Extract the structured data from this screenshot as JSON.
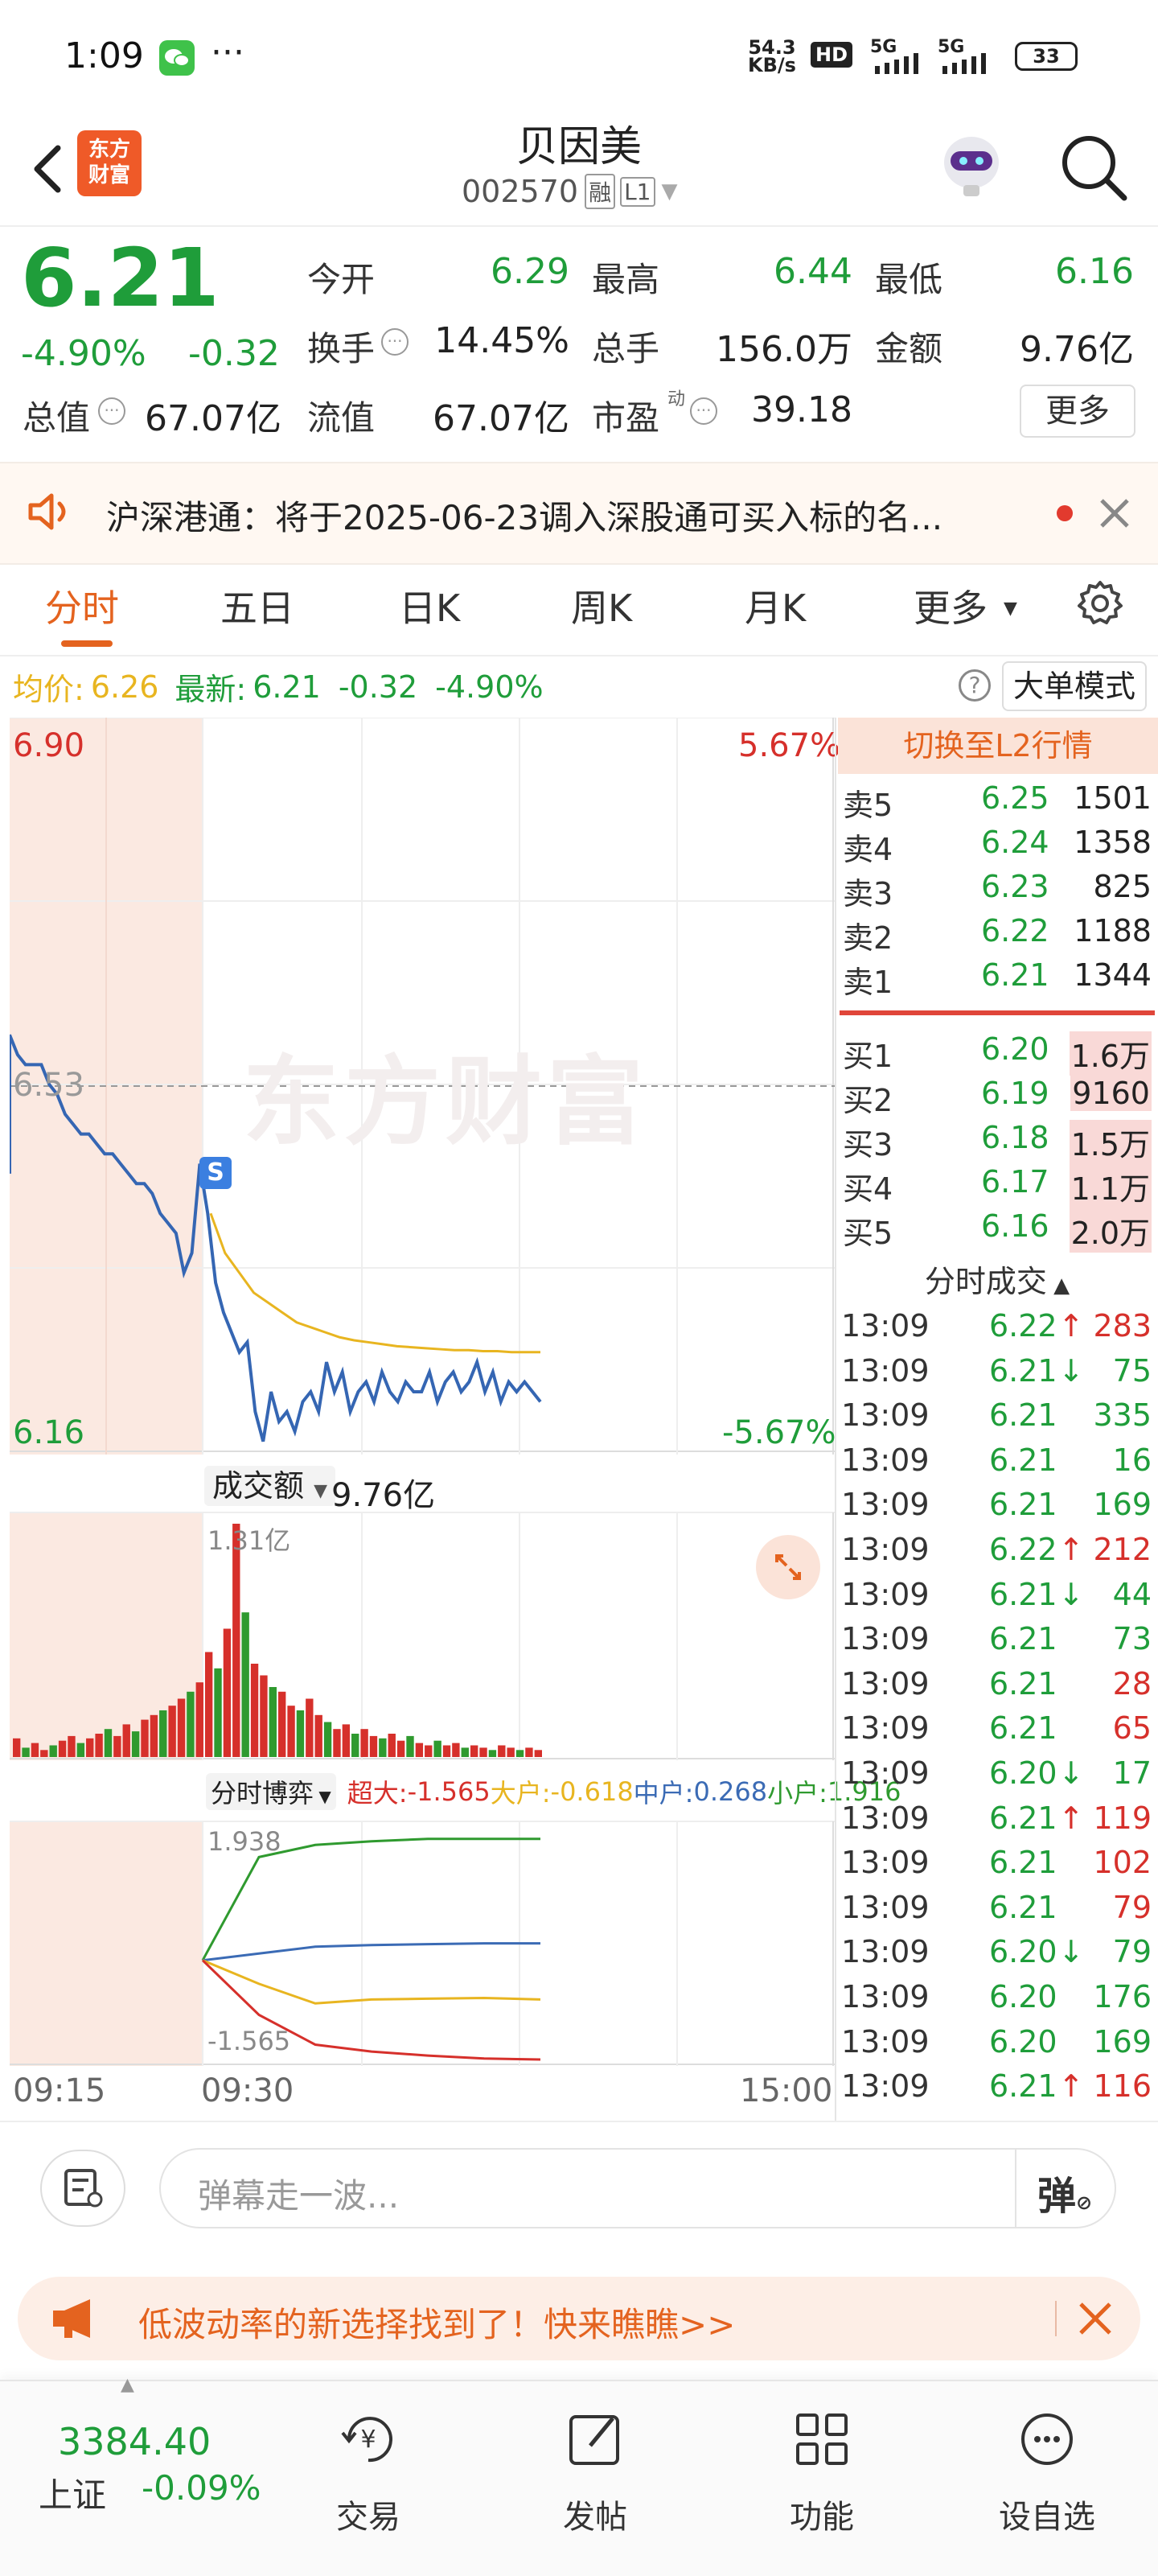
{
  "status_bar": {
    "time": "1:09",
    "dots": "···",
    "net_speed_top": "54.3",
    "net_speed_unit": "KB/s",
    "hd_label": "HD",
    "sig1": "5G",
    "sig2": "5G",
    "battery": "33"
  },
  "header": {
    "logo_line1": "东方",
    "logo_line2": "财富",
    "stock_name": "贝因美",
    "stock_code": "002570",
    "tag_margin": "融",
    "tag_level": "L1"
  },
  "quote": {
    "price": "6.21",
    "change_pct": "-4.90%",
    "change": "-0.32",
    "fields": [
      {
        "label": "今开",
        "value": "6.29"
      },
      {
        "label": "最高",
        "value": "6.44"
      },
      {
        "label": "最低",
        "value": "6.16"
      },
      {
        "label": "换手",
        "value": "14.45%"
      },
      {
        "label": "总手",
        "value": "156.0万"
      },
      {
        "label": "金额",
        "value": "9.76亿"
      },
      {
        "label": "总值",
        "value": "67.07亿"
      },
      {
        "label": "流值",
        "value": "67.07亿"
      },
      {
        "label": "市盈",
        "value": "39.18"
      }
    ],
    "pe_superscript": "动",
    "more_button": "更多"
  },
  "notice": {
    "text": "沪深港通：将于2025-06-23调入深股通可买入标的名..."
  },
  "tabs": [
    "分时",
    "五日",
    "日K",
    "周K",
    "月K",
    "更多"
  ],
  "avg_bar": {
    "avg_label": "均价:",
    "avg_value": "6.26",
    "latest_label": "最新:",
    "latest_value": "6.21",
    "change": "-0.32",
    "change_pct": "-4.90%",
    "big_order_mode": "大单模式"
  },
  "intraday_chart": {
    "y_top": "6.90",
    "y_mid": "6.53",
    "y_bottom": "6.16",
    "pct_top": "5.67%",
    "pct_bottom": "-5.67%",
    "watermark": "东方财富",
    "signal_marker": "S",
    "price_series": [
      6.58,
      6.56,
      6.55,
      6.55,
      6.55,
      6.53,
      6.52,
      6.5,
      6.49,
      6.48,
      6.48,
      6.47,
      6.46,
      6.46,
      6.45,
      6.44,
      6.43,
      6.43,
      6.42,
      6.4,
      6.39,
      6.38,
      6.34,
      6.36,
      6.45,
      6.4,
      6.33,
      6.3,
      6.28,
      6.26,
      6.27,
      6.2,
      6.17,
      6.22,
      6.19,
      6.2,
      6.18,
      6.21,
      6.22,
      6.2,
      6.25,
      6.22,
      6.24,
      6.2,
      6.22,
      6.23,
      6.21,
      6.24,
      6.22,
      6.21,
      6.23,
      6.22,
      6.22,
      6.24,
      6.21,
      6.23,
      6.24,
      6.22,
      6.23,
      6.25,
      6.22,
      6.24,
      6.21,
      6.23,
      6.22,
      6.23,
      6.22,
      6.21
    ],
    "avg_series": [
      6.4,
      6.36,
      6.34,
      6.32,
      6.31,
      6.3,
      6.29,
      6.285,
      6.28,
      6.275,
      6.272,
      6.27,
      6.268,
      6.266,
      6.265,
      6.264,
      6.263,
      6.262,
      6.262,
      6.261,
      6.261,
      6.26,
      6.26,
      6.26
    ]
  },
  "volume_chart": {
    "label": "成交额",
    "total": "9.76亿",
    "max_label": "1.31亿",
    "bars": [
      0.08,
      0.04,
      0.06,
      0.03,
      0.05,
      0.07,
      0.09,
      0.06,
      0.08,
      0.1,
      0.12,
      0.09,
      0.14,
      0.11,
      0.16,
      0.18,
      0.2,
      0.22,
      0.25,
      0.28,
      0.32,
      0.45,
      0.38,
      0.55,
      1.0,
      0.62,
      0.4,
      0.35,
      0.3,
      0.28,
      0.22,
      0.2,
      0.25,
      0.18,
      0.15,
      0.12,
      0.14,
      0.1,
      0.12,
      0.09,
      0.08,
      0.1,
      0.07,
      0.09,
      0.06,
      0.05,
      0.07,
      0.05,
      0.06,
      0.04,
      0.05,
      0.04,
      0.03,
      0.05,
      0.04,
      0.03,
      0.04,
      0.03
    ]
  },
  "capital_game": {
    "label": "分时博弈",
    "super_label": "超大:",
    "super_value": "-1.565",
    "large_label": "大户:",
    "large_value": "-0.618",
    "mid_label": "中户:",
    "mid_value": "0.268",
    "small_label": "小户:",
    "small_value": "1.916",
    "max_label": "1.938",
    "min_label": "-1.565",
    "series_colors": {
      "super": "#d6302b",
      "large": "#e8b520",
      "mid": "#3b6bb5",
      "small": "#2f9a2f"
    }
  },
  "time_axis": [
    "09:15",
    "09:30",
    "15:00"
  ],
  "order_book": {
    "switch_label": "切换至L2行情",
    "asks": [
      {
        "label": "卖5",
        "price": "6.25",
        "vol": "1501"
      },
      {
        "label": "卖4",
        "price": "6.24",
        "vol": "1358"
      },
      {
        "label": "卖3",
        "price": "6.23",
        "vol": "825"
      },
      {
        "label": "卖2",
        "price": "6.22",
        "vol": "1188"
      },
      {
        "label": "卖1",
        "price": "6.21",
        "vol": "1344"
      }
    ],
    "bids": [
      {
        "label": "买1",
        "price": "6.20",
        "vol": "1.6万"
      },
      {
        "label": "买2",
        "price": "6.19",
        "vol": "9160"
      },
      {
        "label": "买3",
        "price": "6.18",
        "vol": "1.5万"
      },
      {
        "label": "买4",
        "price": "6.17",
        "vol": "1.1万"
      },
      {
        "label": "买5",
        "price": "6.16",
        "vol": "2.0万"
      }
    ],
    "ticks_label": "分时成交"
  },
  "ticks": [
    {
      "time": "13:09",
      "price": "6.22",
      "dir": "↑",
      "vol": "283",
      "color": "red"
    },
    {
      "time": "13:09",
      "price": "6.21",
      "dir": "↓",
      "vol": "75",
      "color": "green"
    },
    {
      "time": "13:09",
      "price": "6.21",
      "dir": "",
      "vol": "335",
      "color": "green"
    },
    {
      "time": "13:09",
      "price": "6.21",
      "dir": "",
      "vol": "16",
      "color": "green"
    },
    {
      "time": "13:09",
      "price": "6.21",
      "dir": "",
      "vol": "169",
      "color": "green"
    },
    {
      "time": "13:09",
      "price": "6.22",
      "dir": "↑",
      "vol": "212",
      "color": "red"
    },
    {
      "time": "13:09",
      "price": "6.21",
      "dir": "↓",
      "vol": "44",
      "color": "green"
    },
    {
      "time": "13:09",
      "price": "6.21",
      "dir": "",
      "vol": "73",
      "color": "green"
    },
    {
      "time": "13:09",
      "price": "6.21",
      "dir": "",
      "vol": "28",
      "color": "red"
    },
    {
      "time": "13:09",
      "price": "6.21",
      "dir": "",
      "vol": "65",
      "color": "red"
    },
    {
      "time": "13:09",
      "price": "6.20",
      "dir": "↓",
      "vol": "17",
      "color": "green"
    },
    {
      "time": "13:09",
      "price": "6.21",
      "dir": "↑",
      "vol": "119",
      "color": "red"
    },
    {
      "time": "13:09",
      "price": "6.21",
      "dir": "",
      "vol": "102",
      "color": "red"
    },
    {
      "time": "13:09",
      "price": "6.21",
      "dir": "",
      "vol": "79",
      "color": "red"
    },
    {
      "time": "13:09",
      "price": "6.20",
      "dir": "↓",
      "vol": "79",
      "color": "green"
    },
    {
      "time": "13:09",
      "price": "6.20",
      "dir": "",
      "vol": "176",
      "color": "green"
    },
    {
      "time": "13:09",
      "price": "6.20",
      "dir": "",
      "vol": "169",
      "color": "green"
    },
    {
      "time": "13:09",
      "price": "6.21",
      "dir": "↑",
      "vol": "116",
      "color": "red"
    }
  ],
  "danmaku": {
    "placeholder": "弹幕走一波...",
    "toggle": "弹"
  },
  "promo": {
    "text": "低波动率的新选择找到了！快来瞧瞧>>"
  },
  "bottom_nav": {
    "index_value": "3384.40",
    "index_name": "上证",
    "index_change": "-0.09%",
    "items": [
      "交易",
      "发帖",
      "功能",
      "设自选"
    ]
  }
}
